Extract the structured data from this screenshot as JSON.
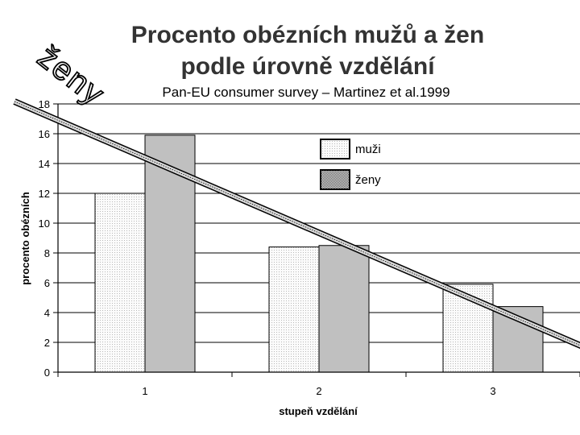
{
  "chart_data": {
    "type": "bar",
    "title_line1": "Procento obézních mužů a žen",
    "title_line2": "podle úrovně vzdělání",
    "subtitle": "Pan-EU consumer survey – Martinez et al.1999",
    "xlabel": "stupeň vzdělání",
    "ylabel": "procento obézních",
    "categories": [
      "1",
      "2",
      "3"
    ],
    "ylim": [
      0,
      18
    ],
    "yticks": [
      "0",
      "2",
      "4",
      "6",
      "8",
      "10",
      "12",
      "14",
      "16",
      "18"
    ],
    "series": [
      {
        "name": "muži",
        "values": [
          12.0,
          8.4,
          5.9
        ],
        "color": "#f4f4f4",
        "pattern": "light-dots"
      },
      {
        "name": "ženy",
        "values": [
          15.9,
          8.5,
          4.4
        ],
        "color": "#c0c0c0",
        "pattern": "solid-gray"
      }
    ],
    "trendline": {
      "label": "ženy",
      "from": [
        0.5,
        16.9
      ],
      "to": [
        3.5,
        1.8
      ]
    },
    "legend_position": "top-center",
    "grid": "horizontal"
  }
}
